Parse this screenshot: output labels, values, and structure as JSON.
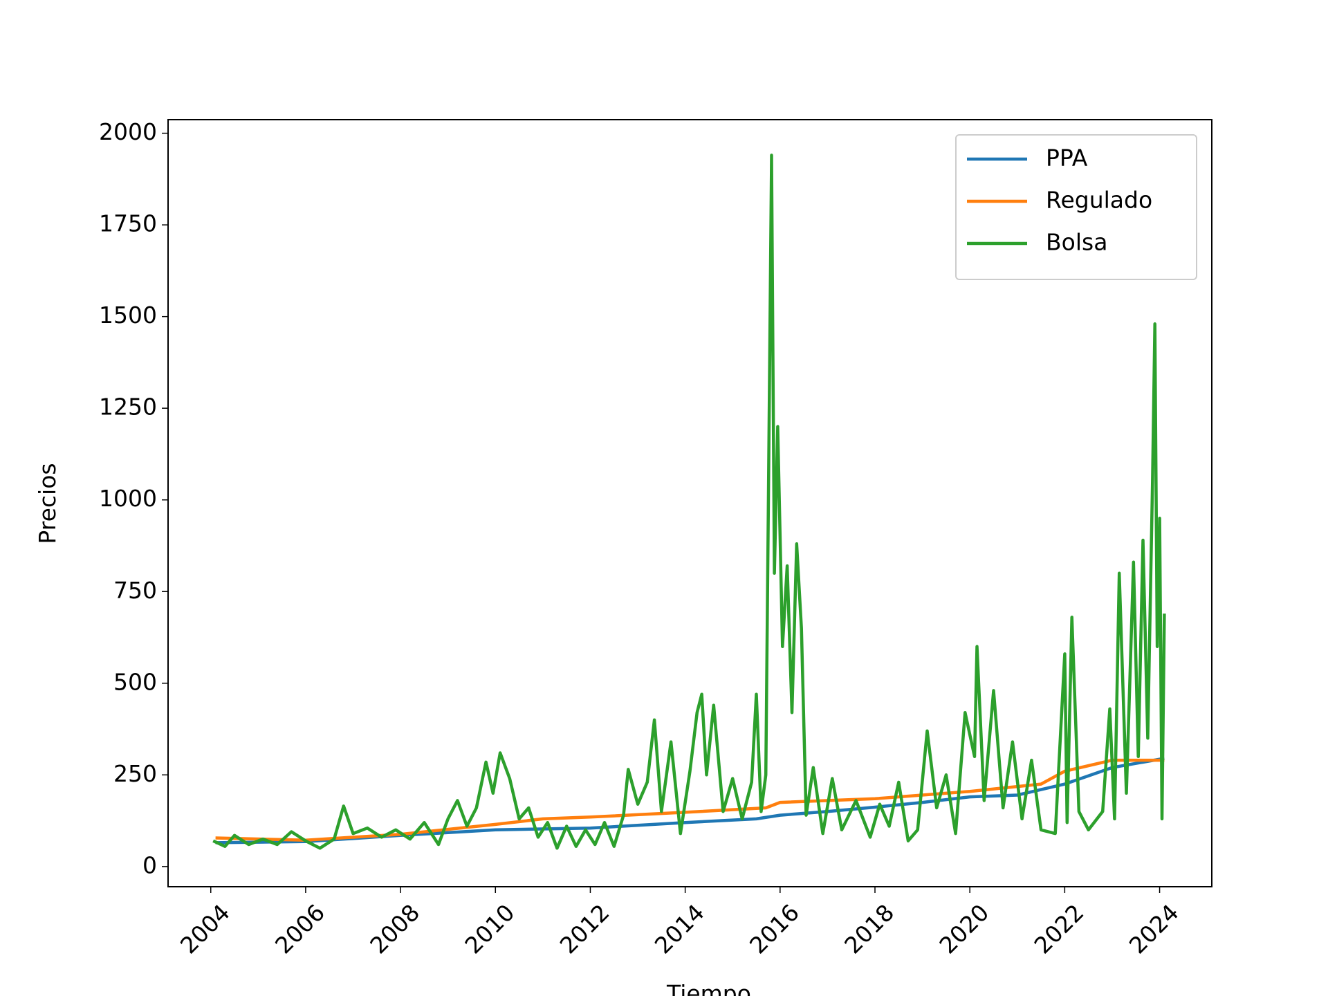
{
  "chart_data": {
    "type": "line",
    "x_label": "Tiempo",
    "y_label": "Precios",
    "xlim": [
      2003.1,
      2025.1
    ],
    "xticks": [
      2004,
      2006,
      2008,
      2010,
      2012,
      2014,
      2016,
      2018,
      2020,
      2022,
      2024
    ],
    "ylim": [
      -55,
      2037
    ],
    "yticks": [
      0,
      250,
      500,
      750,
      1000,
      1250,
      1500,
      1750,
      2000
    ],
    "legend": "upper right",
    "series": [
      {
        "name": "PPA",
        "color": "#1f77b4",
        "x": [
          2004.1,
          2006,
          2008,
          2010,
          2012,
          2014,
          2015.5,
          2016,
          2017,
          2018,
          2019,
          2020,
          2021,
          2022,
          2023,
          2024.1
        ],
        "values": [
          65,
          68,
          85,
          100,
          105,
          120,
          130,
          140,
          150,
          162,
          175,
          190,
          195,
          225,
          270,
          295
        ]
      },
      {
        "name": "Regulado",
        "color": "#ff7f0e",
        "x": [
          2004.1,
          2006,
          2008,
          2010,
          2011,
          2012,
          2014,
          2015.7,
          2016,
          2018,
          2020,
          2021.5,
          2022,
          2023,
          2024.1
        ],
        "values": [
          78,
          72,
          88,
          115,
          130,
          135,
          148,
          160,
          175,
          185,
          205,
          225,
          260,
          290,
          290
        ]
      },
      {
        "name": "Bolsa",
        "color": "#2ca02c",
        "x": [
          2004.05,
          2004.3,
          2004.5,
          2004.8,
          2005.1,
          2005.4,
          2005.7,
          2006.0,
          2006.3,
          2006.6,
          2006.8,
          2007.0,
          2007.3,
          2007.6,
          2007.9,
          2008.2,
          2008.5,
          2008.8,
          2009.0,
          2009.2,
          2009.4,
          2009.6,
          2009.8,
          2009.95,
          2010.1,
          2010.3,
          2010.5,
          2010.7,
          2010.9,
          2011.1,
          2011.3,
          2011.5,
          2011.7,
          2011.9,
          2012.1,
          2012.3,
          2012.5,
          2012.7,
          2012.8,
          2013.0,
          2013.2,
          2013.35,
          2013.5,
          2013.7,
          2013.9,
          2014.1,
          2014.25,
          2014.35,
          2014.45,
          2014.6,
          2014.8,
          2015.0,
          2015.2,
          2015.4,
          2015.5,
          2015.6,
          2015.7,
          2015.75,
          2015.82,
          2015.88,
          2015.95,
          2016.05,
          2016.15,
          2016.25,
          2016.35,
          2016.45,
          2016.55,
          2016.7,
          2016.9,
          2017.1,
          2017.3,
          2017.6,
          2017.9,
          2018.1,
          2018.3,
          2018.5,
          2018.7,
          2018.9,
          2019.1,
          2019.3,
          2019.5,
          2019.7,
          2019.9,
          2020.1,
          2020.15,
          2020.3,
          2020.5,
          2020.7,
          2020.9,
          2021.1,
          2021.3,
          2021.5,
          2021.8,
          2022.0,
          2022.05,
          2022.15,
          2022.3,
          2022.5,
          2022.8,
          2022.95,
          2023.05,
          2023.15,
          2023.3,
          2023.45,
          2023.55,
          2023.65,
          2023.75,
          2023.85,
          2023.9,
          2023.95,
          2024.0,
          2024.05,
          2024.1
        ],
        "values": [
          70,
          55,
          85,
          60,
          75,
          60,
          95,
          70,
          50,
          75,
          165,
          90,
          105,
          80,
          100,
          75,
          120,
          60,
          130,
          180,
          110,
          160,
          285,
          200,
          310,
          240,
          130,
          160,
          80,
          120,
          50,
          110,
          55,
          100,
          60,
          120,
          55,
          140,
          265,
          170,
          230,
          400,
          150,
          340,
          90,
          260,
          420,
          470,
          250,
          440,
          150,
          240,
          130,
          230,
          470,
          150,
          250,
          950,
          1940,
          800,
          1200,
          600,
          820,
          420,
          880,
          650,
          140,
          270,
          90,
          240,
          100,
          180,
          80,
          170,
          110,
          230,
          70,
          100,
          370,
          160,
          250,
          90,
          420,
          300,
          600,
          180,
          480,
          160,
          340,
          130,
          290,
          100,
          90,
          580,
          120,
          680,
          150,
          100,
          150,
          430,
          130,
          800,
          200,
          830,
          300,
          890,
          350,
          1050,
          1480,
          600,
          950,
          130,
          690
        ]
      }
    ]
  }
}
